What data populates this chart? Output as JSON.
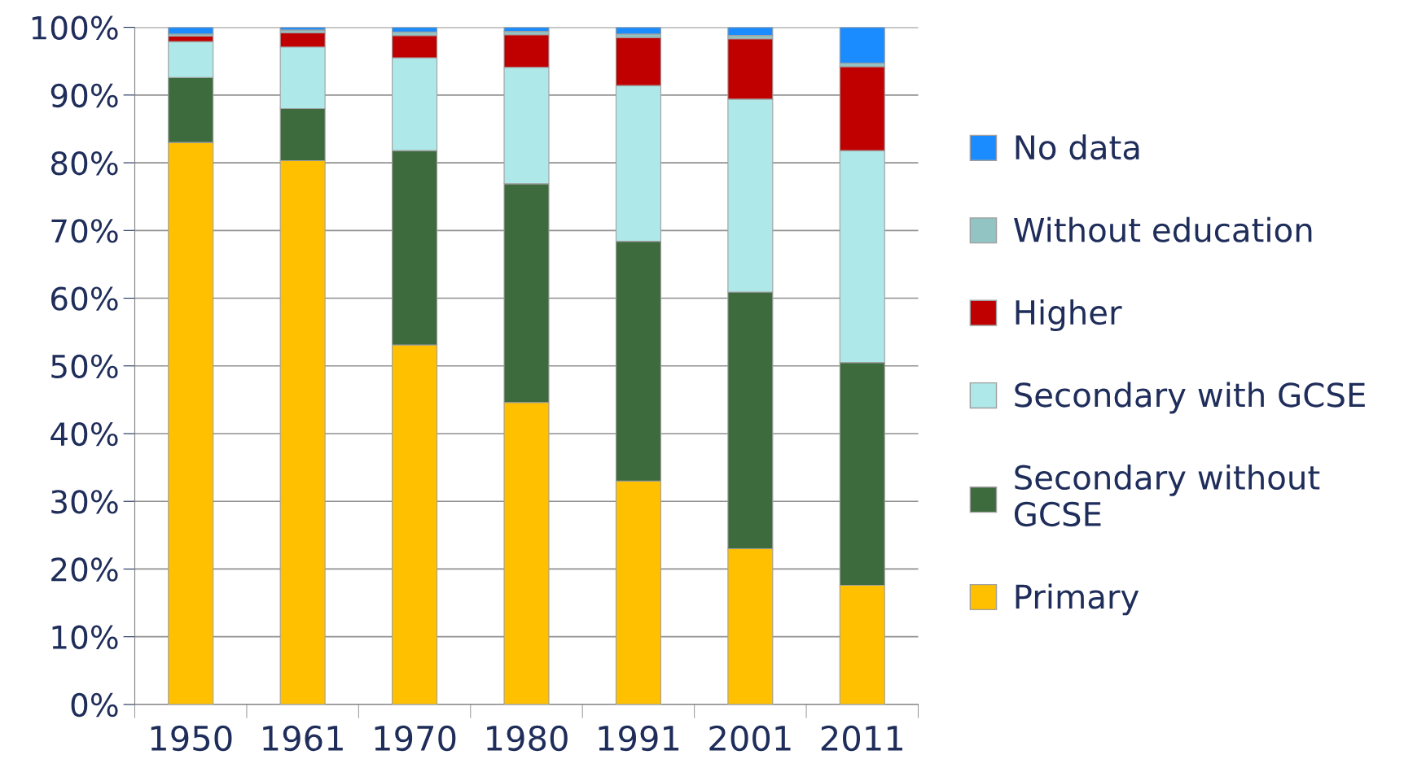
{
  "chart_data": {
    "type": "bar",
    "stacked": true,
    "categories": [
      "1950",
      "1961",
      "1970",
      "1980",
      "1991",
      "2001",
      "2011"
    ],
    "series": [
      {
        "name": "Primary",
        "color": "#ffc000",
        "values": [
          83.0,
          80.3,
          53.1,
          44.6,
          33.0,
          23.0,
          17.6
        ]
      },
      {
        "name": "Secondary without GCSE",
        "color": "#3d6b3d",
        "values": [
          9.6,
          7.7,
          28.7,
          32.3,
          35.4,
          37.9,
          32.9
        ]
      },
      {
        "name": "Secondary with GCSE",
        "color": "#aee8e8",
        "values": [
          5.3,
          9.1,
          13.7,
          17.2,
          23.0,
          28.5,
          31.3
        ]
      },
      {
        "name": "Higher",
        "color": "#c00000",
        "values": [
          0.8,
          2.1,
          3.3,
          4.8,
          7.1,
          8.9,
          12.4
        ]
      },
      {
        "name": "Without education",
        "color": "#93c4c4",
        "values": [
          0.3,
          0.4,
          0.5,
          0.5,
          0.5,
          0.5,
          0.5
        ]
      },
      {
        "name": "No data",
        "color": "#1a8cff",
        "values": [
          1.0,
          0.4,
          0.7,
          0.6,
          1.0,
          1.2,
          5.3
        ]
      }
    ],
    "ylim": [
      0,
      100
    ],
    "yticks": [
      {
        "value": 0,
        "label": "0%"
      },
      {
        "value": 10,
        "label": "10%"
      },
      {
        "value": 20,
        "label": "20%"
      },
      {
        "value": 30,
        "label": "30%"
      },
      {
        "value": 40,
        "label": "40%"
      },
      {
        "value": 50,
        "label": "50%"
      },
      {
        "value": 60,
        "label": "60%"
      },
      {
        "value": 70,
        "label": "70%"
      },
      {
        "value": 80,
        "label": "80%"
      },
      {
        "value": 90,
        "label": "90%"
      },
      {
        "value": 100,
        "label": "100%"
      }
    ],
    "grid": "y",
    "legend": "right"
  }
}
